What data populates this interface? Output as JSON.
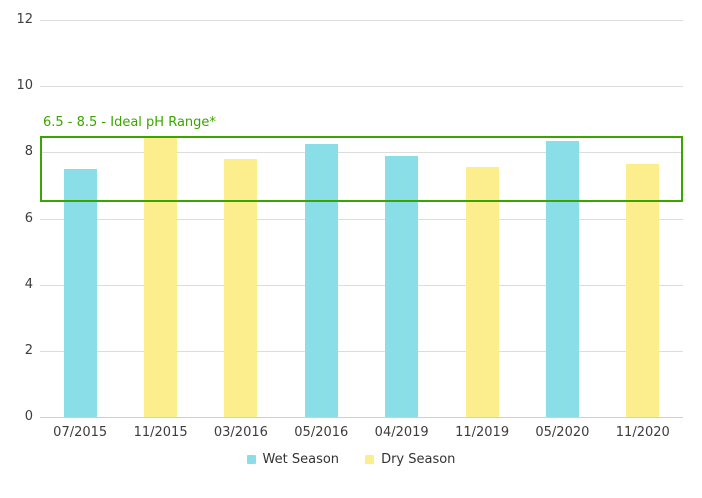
{
  "chart_data": {
    "type": "bar",
    "title": "",
    "xlabel": "",
    "ylabel": "",
    "ylim": [
      0,
      12
    ],
    "yticks": [
      0,
      2,
      4,
      6,
      8,
      10,
      12
    ],
    "grid": true,
    "legend_position": "bottom-center",
    "categories": [
      "07/2015",
      "11/2015",
      "03/2016",
      "05/2016",
      "04/2019",
      "11/2019",
      "05/2020",
      "11/2020"
    ],
    "points": [
      {
        "category": "07/2015",
        "series": "Wet Season",
        "value": 7.5
      },
      {
        "category": "11/2015",
        "series": "Dry Season",
        "value": 8.45
      },
      {
        "category": "03/2016",
        "series": "Dry Season",
        "value": 7.8
      },
      {
        "category": "05/2016",
        "series": "Wet Season",
        "value": 8.25
      },
      {
        "category": "04/2019",
        "series": "Wet Season",
        "value": 7.9
      },
      {
        "category": "11/2019",
        "series": "Dry Season",
        "value": 7.55
      },
      {
        "category": "05/2020",
        "series": "Wet Season",
        "value": 8.35
      },
      {
        "category": "11/2020",
        "series": "Dry Season",
        "value": 7.65
      }
    ],
    "series": [
      {
        "name": "Wet Season",
        "color": "#8ADEE8"
      },
      {
        "name": "Dry Season",
        "color": "#FCEE8D"
      }
    ],
    "annotation": {
      "label": "6.5 - 8.5 - Ideal pH Range*",
      "ymin": 6.5,
      "ymax": 8.5,
      "color": "#3AA500"
    }
  },
  "colors": {
    "background": "#FFFFFF",
    "gridline": "#DDDDDD",
    "axis_line": "#CFCFCF",
    "tick_text": "#3D3D3D",
    "legend_text": "#333333"
  }
}
